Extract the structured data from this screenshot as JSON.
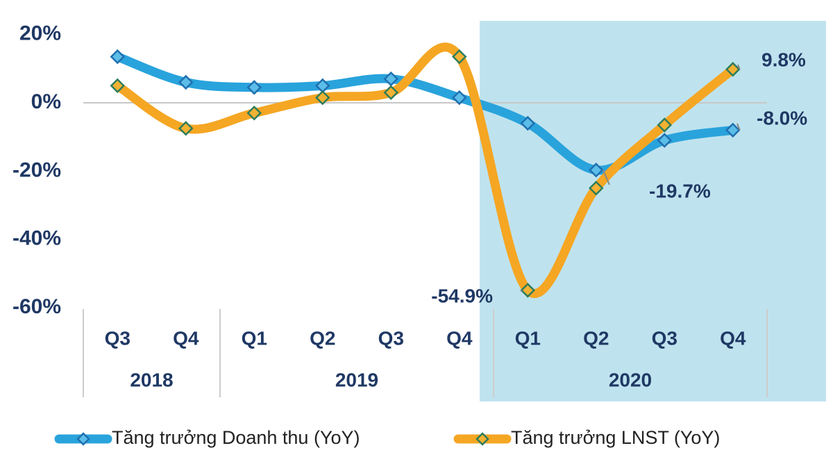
{
  "chart_data": {
    "type": "line",
    "categories": [
      "Q3",
      "Q4",
      "Q1",
      "Q2",
      "Q3",
      "Q4",
      "Q1",
      "Q2",
      "Q3",
      "Q4"
    ],
    "groups": [
      {
        "label": "2018",
        "span": 2
      },
      {
        "label": "2019",
        "span": 4
      },
      {
        "label": "2020",
        "span": 4
      }
    ],
    "highlight_group": 2,
    "highlight_color": "#bfe3ee",
    "series": [
      {
        "name": "Tăng trưởng Doanh thu (YoY)",
        "color": "#29a3dc",
        "values": [
          13.5,
          6,
          4.5,
          5,
          7,
          1.5,
          -6,
          -19.7,
          -11,
          -8.0
        ],
        "value_labels": [
          null,
          null,
          null,
          null,
          null,
          null,
          null,
          "-19.7%",
          null,
          "-8.0%"
        ]
      },
      {
        "name": "Tăng trưởng LNST (YoY)",
        "color": "#f5a623",
        "values": [
          5,
          -7.5,
          -3,
          1.5,
          3,
          13.5,
          -54.9,
          -25,
          -6.5,
          9.8
        ],
        "value_labels": [
          null,
          null,
          null,
          null,
          null,
          null,
          "-54.9%",
          null,
          null,
          "9.8%"
        ]
      }
    ],
    "ylim": [
      -60,
      24
    ],
    "yticks": [
      {
        "value": -60,
        "label": "-60%"
      },
      {
        "value": -40,
        "label": "-40%"
      },
      {
        "value": -20,
        "label": "-20%"
      },
      {
        "value": 0,
        "label": "0%"
      },
      {
        "value": 20,
        "label": "20%"
      }
    ]
  }
}
